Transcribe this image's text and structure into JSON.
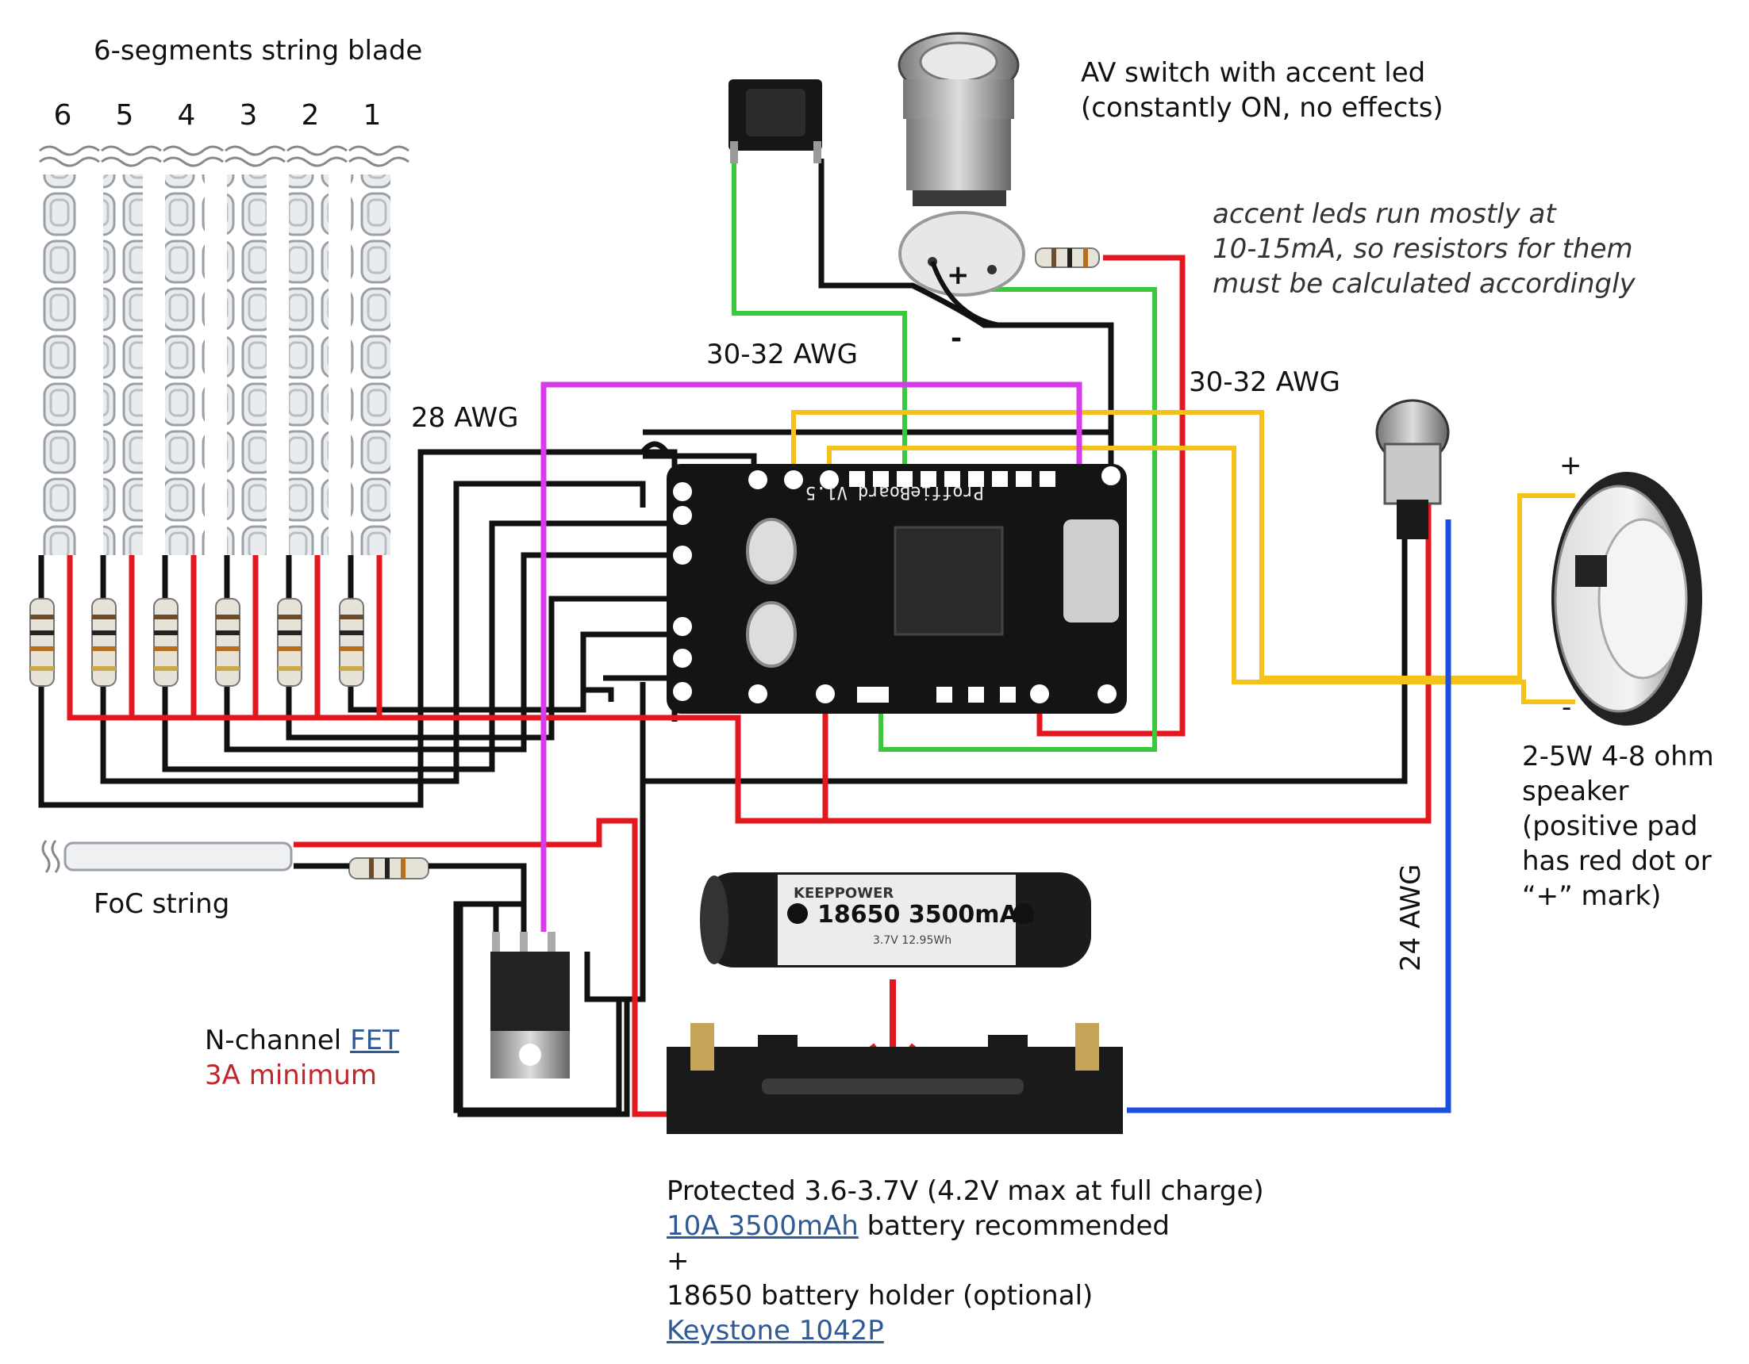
{
  "blade": {
    "title": "6-segments string blade",
    "segments": [
      "6",
      "5",
      "4",
      "3",
      "2",
      "1"
    ]
  },
  "wires": {
    "awg_28": "28 AWG",
    "awg_30_32_left": "30-32 AWG",
    "awg_30_32_right": "30-32 AWG",
    "awg_24": "24 AWG"
  },
  "switch": {
    "line1": "AV switch with accent led",
    "line2": "(constantly ON, no effects)",
    "plus": "+",
    "minus": "-"
  },
  "accent_note": {
    "line1": "accent leds run mostly at",
    "line2": "10-15mA, so resistors for them",
    "line3": "must be calculated accordingly"
  },
  "board": {
    "label": "ProffieBoard V1.5"
  },
  "speaker": {
    "plus": "+",
    "minus": "-",
    "line1": "2-5W 4-8 ohm",
    "line2": "speaker",
    "line3": "(positive pad",
    "line4": "has red dot or",
    "line5": "“+” mark)"
  },
  "foc": {
    "label": "FoC string"
  },
  "fet": {
    "prefix": "N-channel ",
    "link": "FET",
    "min": "3A minimum"
  },
  "cell": {
    "brand": "KEEPPOWER",
    "model": "18650 3500mAh",
    "spec": "3.7V 12.95Wh"
  },
  "battery": {
    "line1": "Protected 3.6-3.7V (4.2V max at full charge)",
    "line2_link": "10A 3500mAh",
    "line2_rest": " battery recommended",
    "line3": "+",
    "line4": "18650 battery holder (optional)",
    "line5_link": "Keystone 1042P"
  },
  "colors": {
    "wire_black": "#111111",
    "wire_red": "#e3181e",
    "wire_green": "#3cc83c",
    "wire_yellow": "#f5c21b",
    "wire_magenta": "#d63ce8",
    "wire_blue": "#1a4fe0",
    "link": "#2f5a94",
    "warning": "#c0262a"
  }
}
